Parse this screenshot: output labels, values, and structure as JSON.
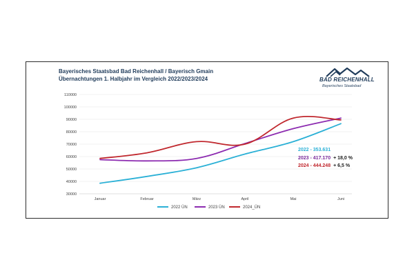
{
  "title": {
    "line1": "Bayerisches Staatsbad Bad Reichenhall / Bayerisch Gmain",
    "line2": "Übernachtungen 1. Halbjahr im Vergleich 2022/2023/2024"
  },
  "logo": {
    "brand": "BAD REICHENHALL",
    "subtitle": "Bayerisches Staatsbad",
    "icon": "mountains-logo-icon"
  },
  "chart_data": {
    "type": "line",
    "categories": [
      "Januar",
      "Februar",
      "März",
      "April",
      "Mai",
      "Juni"
    ],
    "ylim": [
      30000,
      110000
    ],
    "yticks": [
      30000,
      40000,
      50000,
      60000,
      70000,
      80000,
      90000,
      100000,
      110000
    ],
    "grid": true,
    "legend_position": "bottom",
    "series": [
      {
        "name": "2022 ÜN",
        "color": "#2ab0d6",
        "values": [
          38500,
          44000,
          51000,
          62000,
          72000,
          86500
        ]
      },
      {
        "name": "2023 ÜN",
        "color": "#8c2bb0",
        "values": [
          57500,
          56500,
          58500,
          70500,
          82500,
          91000
        ]
      },
      {
        "name": "2024_ÜN",
        "color": "#c0272d",
        "values": [
          58500,
          63000,
          72000,
          70000,
          91000,
          89500
        ]
      }
    ],
    "annotations": [
      {
        "label": "2022 - 353.631",
        "change": "",
        "color": "#2ab0d6"
      },
      {
        "label": "2023 - 417.170",
        "change": "+ 18,0 %",
        "color": "#7a2a9c"
      },
      {
        "label": "2024 - 444.248",
        "change": "+   6,5 %",
        "color": "#c0272d"
      }
    ]
  }
}
